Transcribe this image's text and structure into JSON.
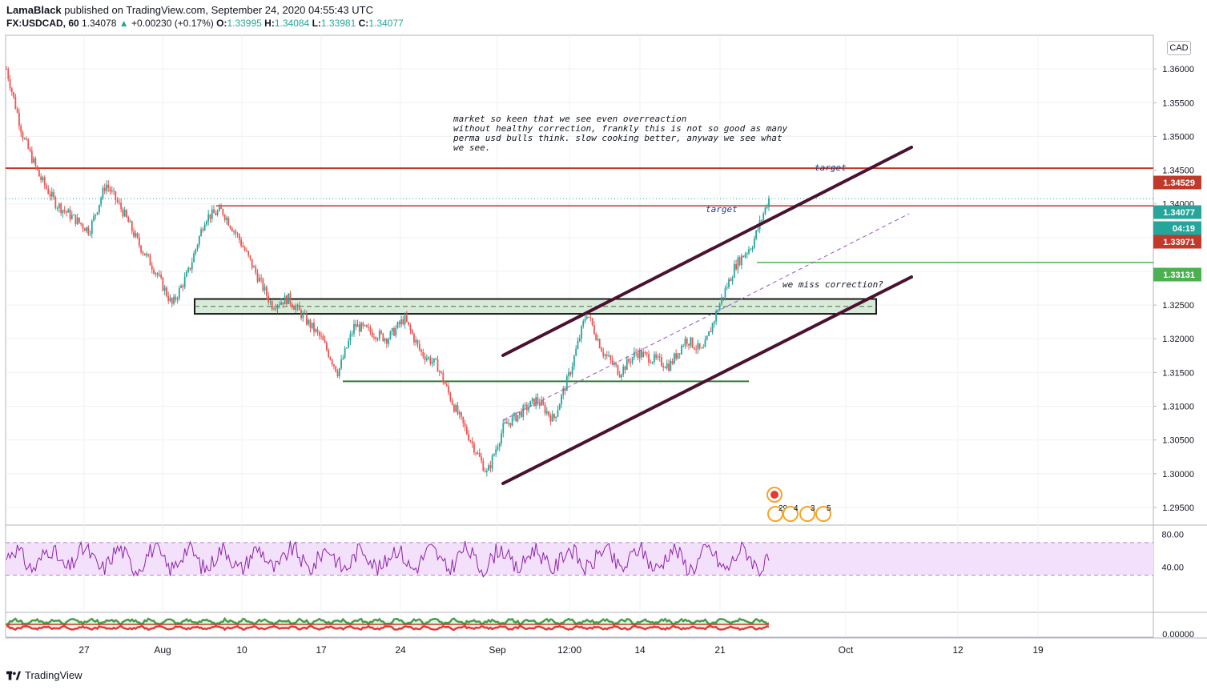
{
  "header": {
    "author": "LamaBlack",
    "published_text": "published on TradingView.com, September 24, 2020 04:55:43 UTC",
    "symbol": "FX:USDCAD, 60",
    "last": "1.34078",
    "change": "+0.00230 (+0.17%)",
    "o_label": "O:",
    "o_value": "1.33995",
    "h_label": "H:",
    "h_value": "1.34084",
    "l_label": "L:",
    "l_value": "1.33981",
    "c_label": "C:",
    "c_value": "1.34077"
  },
  "currency_badge": "CAD",
  "footer": {
    "brand": "TradingView"
  },
  "colors": {
    "up": "#26a69a",
    "down": "#ef5350",
    "channel": "#4a1230",
    "resistance": "#c0392b",
    "support_green": "#2e7d32",
    "green_level": "#4caf50",
    "zone_fill": "#d8ead8",
    "rsi_line": "#8e24aa",
    "rsi_band": "#f3e0fb",
    "osc_green": "#43a047",
    "osc_red": "#e53935",
    "osc_blue": "#1e3a8a"
  },
  "chart_data": [
    {
      "type": "candlestick",
      "symbol": "FX:USDCAD",
      "timeframe": "60",
      "ylim": [
        1.2925,
        1.365
      ],
      "y_ticks": [
        "1.36000",
        "1.35500",
        "1.35000",
        "1.34500",
        "1.34000",
        "1.33500",
        "1.33000",
        "1.32500",
        "1.32000",
        "1.31500",
        "1.31000",
        "1.30500",
        "1.30000",
        "1.29500"
      ],
      "x_ticks": [
        "27",
        "Aug",
        "10",
        "17",
        "24",
        "Sep",
        "12:00",
        "14",
        "21",
        "Oct",
        "12",
        "19"
      ],
      "grid": true,
      "price_series": [
        [
          "Jul 22",
          1.36
        ],
        [
          "Jul 23",
          1.35
        ],
        [
          "Jul 24",
          1.344
        ],
        [
          "Jul 27",
          1.34
        ],
        [
          "Jul 28",
          1.338
        ],
        [
          "Jul 29",
          1.336
        ],
        [
          "Jul 30",
          1.343
        ],
        [
          "Jul 31",
          1.339
        ],
        [
          "Aug 3",
          1.334
        ],
        [
          "Aug 4",
          1.33
        ],
        [
          "Aug 5",
          1.325
        ],
        [
          "Aug 6",
          1.33
        ],
        [
          "Aug 7",
          1.338
        ],
        [
          "Aug 10",
          1.339
        ],
        [
          "Aug 11",
          1.335
        ],
        [
          "Aug 12",
          1.33
        ],
        [
          "Aug 13",
          1.325
        ],
        [
          "Aug 14",
          1.326
        ],
        [
          "Aug 17",
          1.323
        ],
        [
          "Aug 18",
          1.32
        ],
        [
          "Aug 19",
          1.315
        ],
        [
          "Aug 20",
          1.322
        ],
        [
          "Aug 21",
          1.321
        ],
        [
          "Aug 24",
          1.32
        ],
        [
          "Aug 25",
          1.323
        ],
        [
          "Aug 26",
          1.318
        ],
        [
          "Aug 27",
          1.316
        ],
        [
          "Aug 28",
          1.31
        ],
        [
          "Aug 31",
          1.305
        ],
        [
          "Sep 1",
          1.3
        ],
        [
          "Sep 2",
          1.307
        ],
        [
          "Sep 3",
          1.309
        ],
        [
          "Sep 4",
          1.311
        ],
        [
          "Sep 7",
          1.308
        ],
        [
          "Sep 8",
          1.315
        ],
        [
          "Sep 9",
          1.324
        ],
        [
          "Sep 10",
          1.318
        ],
        [
          "Sep 11",
          1.315
        ],
        [
          "Sep 14",
          1.318
        ],
        [
          "Sep 15",
          1.317
        ],
        [
          "Sep 16",
          1.316
        ],
        [
          "Sep 17",
          1.32
        ],
        [
          "Sep 18",
          1.318
        ],
        [
          "Sep 21",
          1.325
        ],
        [
          "Sep 22",
          1.331
        ],
        [
          "Sep 23",
          1.334
        ],
        [
          "Sep 24",
          1.3408
        ]
      ],
      "price_labels": [
        {
          "value": "1.34529",
          "color": "#c0392b"
        },
        {
          "value": "1.34077",
          "color": "#26a69a"
        },
        {
          "value": "04:19",
          "color": "#26a69a"
        },
        {
          "value": "1.33971",
          "color": "#c0392b"
        },
        {
          "value": "1.33131",
          "color": "#4caf50"
        }
      ],
      "levels": [
        {
          "price": 1.34529,
          "kind": "resistance"
        },
        {
          "price": 1.33971,
          "kind": "resistance"
        },
        {
          "price": 1.33131,
          "kind": "green_level"
        },
        {
          "price": 1.3137,
          "kind": "support"
        },
        {
          "zone": [
            1.3237,
            1.3259
          ],
          "kind": "zone"
        }
      ],
      "annotations": [
        "market so keen that we see even overreaction",
        "without healthy correction, frankly this is not so good as many",
        "perma usd bulls think. slow cooking better, anyway we see what",
        "we see.",
        "target",
        "target",
        "we miss correction?"
      ],
      "event_markers": [
        "29",
        "4",
        "3",
        "5"
      ]
    },
    {
      "type": "line",
      "name": "RSI",
      "ylim": [
        0,
        100
      ],
      "y_ticks": [
        "80.00",
        "40.00"
      ],
      "bands": [
        30,
        70
      ]
    },
    {
      "type": "line",
      "name": "oscillator",
      "y_ticks": [
        "0.00000"
      ]
    }
  ]
}
